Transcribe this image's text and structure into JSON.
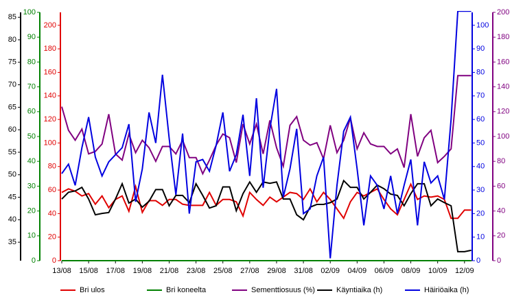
{
  "chart_data": {
    "type": "line",
    "categories": [
      "13/08",
      null,
      null,
      null,
      "15/08",
      null,
      null,
      null,
      "17/08",
      null,
      null,
      null,
      "19/08",
      null,
      null,
      null,
      "21/08",
      null,
      null,
      null,
      "23/08",
      null,
      null,
      null,
      "25/08",
      null,
      null,
      null,
      "27/08",
      null,
      null,
      null,
      "29/08",
      null,
      null,
      null,
      "31/08",
      null,
      null,
      null,
      "02/09",
      null,
      null,
      null,
      "04/09",
      null,
      null,
      null,
      "06/09",
      null,
      null,
      null,
      "08/09",
      null,
      null,
      null,
      "10/09",
      null,
      null,
      null,
      "12/09",
      null
    ],
    "axes": [
      {
        "color": "#000000",
        "lim": [
          30.9,
          86.1
        ],
        "ticks": [
          35,
          40,
          45,
          50,
          55,
          60,
          65,
          70,
          75,
          80,
          85
        ]
      },
      {
        "color": "#008000",
        "lim": [
          0,
          100
        ],
        "ticks": [
          0,
          10,
          20,
          30,
          40,
          50,
          60,
          70,
          80,
          90,
          100
        ]
      },
      {
        "color": "#e00000",
        "lim": [
          0,
          211
        ],
        "ticks": [
          0,
          20,
          40,
          60,
          80,
          100,
          120,
          140,
          160,
          180,
          200
        ]
      },
      {
        "color": "#0000e0",
        "lim": [
          0,
          105.5
        ],
        "ticks": [
          0,
          10,
          20,
          30,
          40,
          50,
          60,
          70,
          80,
          90,
          100
        ]
      },
      {
        "color": "#800080",
        "lim": [
          0,
          200
        ],
        "ticks": [
          0,
          20,
          40,
          60,
          80,
          100,
          120,
          140,
          160,
          180,
          200
        ]
      }
    ],
    "series": [
      {
        "name": "Bri ulos",
        "color": "#e00000",
        "axis": 2,
        "values": [
          58,
          61,
          59,
          55,
          57,
          48,
          55,
          45,
          52,
          55,
          42,
          63,
          41,
          51,
          51,
          47,
          52,
          52,
          48,
          47,
          47,
          47,
          58,
          47,
          52,
          52,
          50,
          38,
          58,
          52,
          47,
          54,
          50,
          54,
          58,
          57,
          52,
          61,
          50,
          58,
          52,
          44,
          36,
          50,
          58,
          55,
          58,
          61,
          52,
          44,
          39,
          52,
          65,
          52,
          55,
          54,
          55,
          52,
          36,
          36,
          43,
          43
        ]
      },
      {
        "name": "Bri koneelta",
        "color": "#008000",
        "axis": 1,
        "values": [
          0,
          0,
          0,
          0,
          0,
          0,
          0,
          0,
          0,
          0,
          0,
          0,
          0,
          0,
          0,
          0,
          0,
          0,
          0,
          0,
          0,
          0,
          0,
          0,
          0,
          0,
          0,
          0,
          0,
          0,
          0,
          0,
          0,
          0,
          0,
          0,
          0,
          0,
          0,
          0,
          0,
          0,
          0,
          0,
          0,
          0,
          0,
          0,
          0,
          0,
          0,
          0,
          0,
          0,
          0,
          0,
          0,
          0,
          0,
          0,
          0,
          0
        ]
      },
      {
        "name": "Sementtiosuus (%)",
        "color": "#800080",
        "axis": 4,
        "values": [
          124,
          105,
          97,
          106,
          86,
          88,
          94,
          118,
          86,
          81,
          102,
          87,
          97,
          91,
          80,
          92,
          92,
          86,
          97,
          83,
          83,
          70,
          81,
          93,
          102,
          99,
          79,
          110,
          94,
          110,
          86,
          113,
          91,
          76,
          109,
          116,
          97,
          93,
          95,
          82,
          109,
          87,
          97,
          115,
          90,
          103,
          94,
          92,
          92,
          86,
          90,
          75,
          118,
          84,
          99,
          105,
          79,
          84,
          90,
          149,
          149,
          149
        ]
      },
      {
        "name": "Käyntiaika (h)",
        "color": "#000000",
        "axis": 0,
        "values": [
          44.6,
          46.1,
          46.4,
          47.2,
          44.6,
          41.1,
          41.4,
          41.6,
          44.6,
          48.0,
          43.7,
          44.6,
          42.8,
          44.1,
          46.7,
          46.7,
          43.1,
          45.4,
          45.4,
          43.8,
          48.0,
          45.4,
          42.6,
          43.1,
          47.3,
          47.3,
          42.0,
          45.8,
          48.4,
          46.1,
          48.4,
          48.1,
          48.4,
          44.6,
          44.6,
          41.1,
          40.0,
          42.8,
          43.4,
          43.4,
          43.8,
          44.6,
          48.7,
          47.2,
          47.2,
          44.6,
          46.1,
          47.7,
          46.9,
          45.7,
          45.4,
          43.1,
          45.8,
          48.0,
          48.0,
          43.1,
          44.6,
          43.8,
          43.1,
          32.9,
          32.9,
          33.2
        ]
      },
      {
        "name": "Häiriöaika (h)",
        "color": "#0000e0",
        "axis": 3,
        "values": [
          37,
          41,
          32,
          48,
          61,
          44,
          36,
          42,
          45,
          48,
          58,
          25,
          39,
          63,
          50,
          79,
          52,
          28,
          54,
          20,
          42,
          43,
          38,
          49,
          63,
          38,
          45,
          62,
          36,
          69,
          31,
          56,
          73,
          27,
          39,
          56,
          20,
          22,
          36,
          44,
          1,
          32,
          55,
          61,
          39,
          15,
          36,
          32,
          22,
          36,
          20,
          32,
          43,
          15,
          42,
          33,
          36,
          26,
          60,
          106,
          106,
          106
        ]
      }
    ]
  }
}
